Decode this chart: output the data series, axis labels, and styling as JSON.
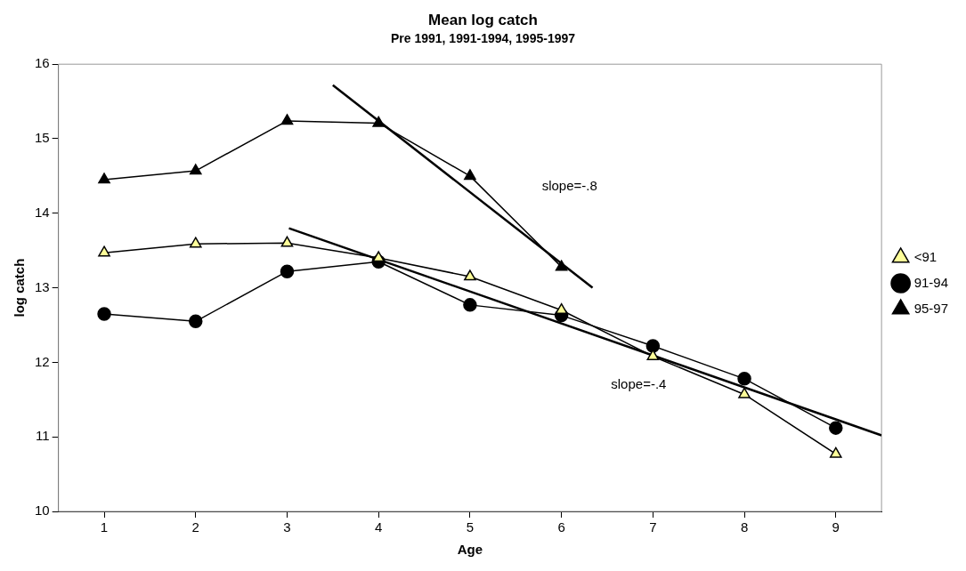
{
  "chart_data": {
    "type": "line",
    "title": "Mean log catch",
    "subtitle": "Pre 1991, 1991-1994, 1995-1997",
    "xlabel": "Age",
    "ylabel": "log catch",
    "x": [
      1,
      2,
      3,
      4,
      5,
      6,
      7,
      8,
      9
    ],
    "xlim": [
      0.5,
      9.5
    ],
    "xticks": [
      1,
      2,
      3,
      4,
      5,
      6,
      7,
      8,
      9
    ],
    "ylim": [
      10,
      16
    ],
    "yticks": [
      10,
      11,
      12,
      13,
      14,
      15,
      16
    ],
    "series": [
      {
        "name": "<91",
        "color": "#ffff99",
        "marker": "triangle",
        "values": [
          13.47,
          13.59,
          13.6,
          13.4,
          13.15,
          12.7,
          12.08,
          11.57,
          10.77
        ]
      },
      {
        "name": "91-94",
        "color": "#000000",
        "marker": "circle",
        "values": [
          12.65,
          12.55,
          13.22,
          13.35,
          12.77,
          12.63,
          12.22,
          11.78,
          11.12
        ]
      },
      {
        "name": "95-97",
        "color": "#000000",
        "marker": "triangle",
        "values": [
          14.45,
          14.57,
          15.24,
          15.21,
          14.5,
          13.28,
          null,
          null,
          null
        ]
      },
      {
        "type": "line",
        "color": "#000000",
        "marker": "none",
        "x": [
          3.5,
          6.34
        ],
        "values": [
          15.72,
          13.0
        ]
      },
      {
        "type": "line",
        "color": "#000000",
        "marker": "none",
        "x": [
          3.02,
          9.5
        ],
        "values": [
          13.8,
          11.02
        ]
      }
    ],
    "annotations": [
      "slope=-.8",
      "slope=-.4"
    ],
    "grid": false,
    "legend": "right"
  }
}
